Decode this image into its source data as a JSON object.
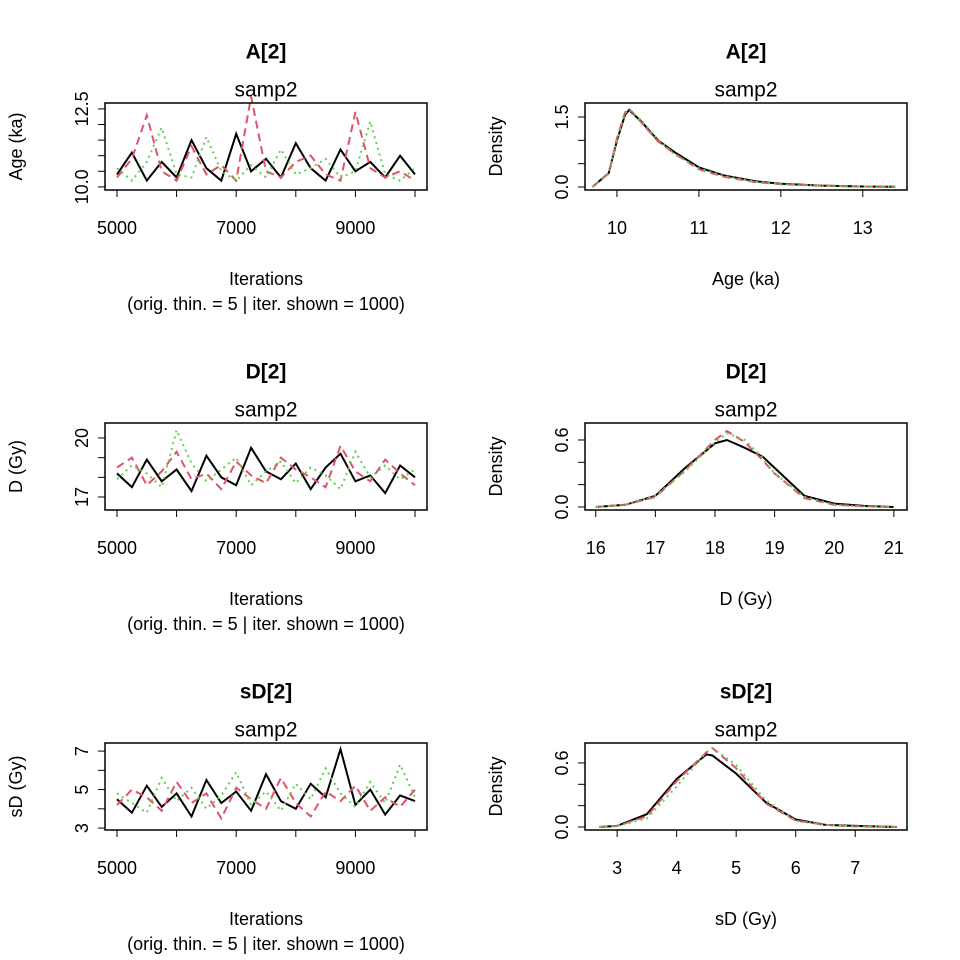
{
  "chart_data": [
    {
      "type": "line",
      "title": "A[2]",
      "subtitle": "samp2",
      "xlabel": "Iterations",
      "note": "(orig. thin. = 5 | iter. shown = 1000)",
      "ylabel": "Age (ka)",
      "x": [
        5000,
        5250,
        5500,
        5750,
        6000,
        6250,
        6500,
        6750,
        7000,
        7250,
        7500,
        7750,
        8000,
        8250,
        8500,
        8750,
        9000,
        9250,
        9500,
        9750,
        10000
      ],
      "series": [
        {
          "color": "#000000",
          "dash": "solid",
          "values": [
            10.4,
            11.1,
            10.2,
            10.8,
            10.3,
            11.5,
            10.6,
            10.2,
            11.7,
            10.5,
            10.9,
            10.3,
            11.4,
            10.6,
            10.2,
            11.2,
            10.5,
            10.8,
            10.3,
            11.0,
            10.4
          ]
        },
        {
          "color": "#DF536B",
          "dash": "dashed",
          "values": [
            10.3,
            10.9,
            12.3,
            10.5,
            10.2,
            11.3,
            10.4,
            10.7,
            10.2,
            12.9,
            10.5,
            10.3,
            10.8,
            11.0,
            10.4,
            10.2,
            12.4,
            10.6,
            10.3,
            10.5,
            10.2
          ]
        },
        {
          "color": "#61D04F",
          "dash": "dotted",
          "values": [
            10.6,
            10.2,
            10.8,
            11.9,
            10.4,
            10.3,
            11.6,
            10.5,
            10.2,
            10.7,
            10.3,
            11.2,
            10.4,
            10.6,
            10.9,
            10.3,
            10.5,
            12.1,
            10.4,
            10.2,
            10.6
          ]
        }
      ],
      "xlim": [
        4799,
        10201
      ],
      "xticks": [
        5000,
        7000,
        9000
      ],
      "xticks_minor": [
        6000,
        8000,
        10000
      ],
      "ylim": [
        9.9,
        12.69
      ],
      "yticks": [
        {
          "value": 10,
          "label": "10.0"
        },
        12.5
      ],
      "yticks_minor": [
        10.5,
        11,
        11.5,
        12
      ]
    },
    {
      "type": "line",
      "title": "A[2]",
      "subtitle": "samp2",
      "xlabel": "Age (ka)",
      "ylabel": "Density",
      "x": [
        9.7,
        9.9,
        10.0,
        10.1,
        10.15,
        10.3,
        10.5,
        10.7,
        11.0,
        11.3,
        11.7,
        12.0,
        12.5,
        13.0,
        13.4
      ],
      "series": [
        {
          "color": "#000000",
          "dash": "solid",
          "values": [
            0,
            0.3,
            1.0,
            1.55,
            1.65,
            1.4,
            1.0,
            0.75,
            0.42,
            0.25,
            0.12,
            0.07,
            0.03,
            0.01,
            0.005
          ]
        },
        {
          "color": "#DF536B",
          "dash": "dashed",
          "values": [
            0,
            0.3,
            1.05,
            1.6,
            1.68,
            1.38,
            0.98,
            0.72,
            0.38,
            0.22,
            0.1,
            0.06,
            0.03,
            0.01,
            0.005
          ]
        },
        {
          "color": "#61D04F",
          "dash": "dotted",
          "values": [
            0,
            0.28,
            1.0,
            1.58,
            1.66,
            1.42,
            1.02,
            0.7,
            0.4,
            0.24,
            0.11,
            0.06,
            0.02,
            0.01,
            0.005
          ]
        }
      ],
      "xlim": [
        9.61,
        13.54
      ],
      "xticks": [
        10,
        11,
        12,
        13
      ],
      "ylim": [
        -0.064,
        1.8
      ],
      "yticks": [
        {
          "value": 0,
          "label": "0.0"
        },
        1.5
      ],
      "yticks_minor": [
        0.5,
        1
      ]
    },
    {
      "type": "line",
      "title": "D[2]",
      "subtitle": "samp2",
      "xlabel": "Iterations",
      "note": "(orig. thin. = 5 | iter. shown = 1000)",
      "ylabel": "D (Gy)",
      "x": [
        5000,
        5250,
        5500,
        5750,
        6000,
        6250,
        6500,
        6750,
        7000,
        7250,
        7500,
        7750,
        8000,
        8250,
        8500,
        8750,
        9000,
        9250,
        9500,
        9750,
        10000
      ],
      "series": [
        {
          "color": "#000000",
          "dash": "solid",
          "values": [
            18.2,
            17.5,
            18.9,
            17.8,
            18.4,
            17.3,
            19.1,
            18.0,
            17.6,
            19.5,
            18.3,
            17.9,
            18.7,
            17.4,
            18.5,
            19.2,
            17.8,
            18.1,
            17.2,
            18.6,
            18.0
          ]
        },
        {
          "color": "#DF536B",
          "dash": "dashed",
          "values": [
            18.5,
            19.0,
            17.6,
            18.3,
            19.3,
            17.9,
            18.2,
            17.4,
            18.8,
            18.1,
            17.7,
            19.0,
            18.4,
            18.0,
            17.5,
            19.6,
            18.3,
            17.8,
            18.9,
            18.2,
            17.6
          ]
        },
        {
          "color": "#61D04F",
          "dash": "dotted",
          "values": [
            17.9,
            18.6,
            18.2,
            17.5,
            20.4,
            18.7,
            17.8,
            18.4,
            19.0,
            17.6,
            18.3,
            18.8,
            17.7,
            18.5,
            18.1,
            17.4,
            19.3,
            18.0,
            18.6,
            17.9,
            18.4
          ]
        }
      ],
      "xlim": [
        4799,
        10201
      ],
      "xticks": [
        5000,
        7000,
        9000
      ],
      "xticks_minor": [
        6000,
        8000,
        10000
      ],
      "ylim": [
        16.34,
        20.76
      ],
      "yticks": [
        17,
        20
      ],
      "yticks_minor": [
        18,
        19
      ]
    },
    {
      "type": "line",
      "title": "D[2]",
      "subtitle": "samp2",
      "xlabel": "D (Gy)",
      "ylabel": "Density",
      "x": [
        16,
        16.5,
        17,
        17.5,
        18,
        18.2,
        18.5,
        18.8,
        19,
        19.5,
        20,
        20.5,
        21
      ],
      "series": [
        {
          "color": "#000000",
          "dash": "solid",
          "values": [
            0,
            0.02,
            0.1,
            0.35,
            0.57,
            0.6,
            0.53,
            0.45,
            0.35,
            0.1,
            0.03,
            0.01,
            0
          ]
        },
        {
          "color": "#DF536B",
          "dash": "dashed",
          "values": [
            0,
            0.02,
            0.09,
            0.33,
            0.6,
            0.68,
            0.58,
            0.42,
            0.3,
            0.08,
            0.02,
            0.005,
            0
          ]
        },
        {
          "color": "#61D04F",
          "dash": "dotted",
          "values": [
            0,
            0.02,
            0.1,
            0.32,
            0.58,
            0.66,
            0.6,
            0.44,
            0.3,
            0.09,
            0.02,
            0.005,
            0
          ]
        }
      ],
      "xlim": [
        15.82,
        21.22
      ],
      "xticks": [
        16,
        17,
        18,
        19,
        20,
        21
      ],
      "ylim": [
        -0.027,
        0.752
      ],
      "yticks": [
        {
          "value": 0,
          "label": "0.0"
        },
        0.6
      ],
      "yticks_minor": [
        0.2,
        0.4
      ]
    },
    {
      "type": "line",
      "title": "sD[2]",
      "subtitle": "samp2",
      "xlabel": "Iterations",
      "note": "(orig. thin. = 5 | iter. shown = 1000)",
      "ylabel": "sD (Gy)",
      "x": [
        5000,
        5250,
        5500,
        5750,
        6000,
        6250,
        6500,
        6750,
        7000,
        7250,
        7500,
        7750,
        8000,
        8250,
        8500,
        8750,
        9000,
        9250,
        9500,
        9750,
        10000
      ],
      "series": [
        {
          "color": "#000000",
          "dash": "solid",
          "values": [
            4.5,
            3.8,
            5.2,
            4.1,
            4.8,
            3.6,
            5.5,
            4.3,
            4.9,
            3.9,
            5.8,
            4.4,
            4.0,
            5.3,
            4.6,
            7.1,
            4.2,
            5.0,
            3.7,
            4.7,
            4.4
          ]
        },
        {
          "color": "#DF536B",
          "dash": "dashed",
          "values": [
            4.2,
            5.0,
            4.6,
            3.9,
            5.4,
            4.3,
            4.8,
            3.5,
            5.1,
            4.5,
            4.0,
            5.6,
            4.3,
            3.6,
            4.9,
            4.4,
            5.2,
            3.9,
            4.6,
            4.1,
            5.0
          ]
        },
        {
          "color": "#61D04F",
          "dash": "dotted",
          "values": [
            4.8,
            4.3,
            3.8,
            5.6,
            4.4,
            5.1,
            4.0,
            4.7,
            5.9,
            4.2,
            4.9,
            3.9,
            5.3,
            4.5,
            6.1,
            4.8,
            4.1,
            5.4,
            4.3,
            6.3,
            4.6
          ]
        }
      ],
      "xlim": [
        4799,
        10201
      ],
      "xticks": [
        5000,
        7000,
        9000
      ],
      "xticks_minor": [
        6000,
        8000,
        10000
      ],
      "ylim": [
        2.9,
        7.42
      ],
      "yticks": [
        3,
        5,
        7
      ],
      "yticks_minor": [
        4,
        6
      ]
    },
    {
      "type": "line",
      "title": "sD[2]",
      "subtitle": "samp2",
      "xlabel": "sD (Gy)",
      "ylabel": "Density",
      "x": [
        2.7,
        3,
        3.5,
        4,
        4.5,
        4.6,
        5,
        5.5,
        6,
        6.5,
        7,
        7.7
      ],
      "series": [
        {
          "color": "#000000",
          "dash": "solid",
          "values": [
            0,
            0.01,
            0.12,
            0.45,
            0.68,
            0.67,
            0.5,
            0.23,
            0.07,
            0.02,
            0.01,
            0
          ]
        },
        {
          "color": "#DF536B",
          "dash": "dashed",
          "values": [
            0,
            0.01,
            0.1,
            0.43,
            0.7,
            0.74,
            0.55,
            0.22,
            0.06,
            0.02,
            0.005,
            0
          ]
        },
        {
          "color": "#61D04F",
          "dash": "dotted",
          "values": [
            0,
            0.01,
            0.08,
            0.38,
            0.7,
            0.74,
            0.58,
            0.25,
            0.06,
            0.02,
            0.005,
            0
          ]
        }
      ],
      "xlim": [
        2.46,
        7.87
      ],
      "xticks": [
        3,
        4,
        5,
        6,
        7
      ],
      "ylim": [
        -0.028,
        0.787
      ],
      "yticks": [
        {
          "value": 0,
          "label": "0.0"
        },
        0.6
      ],
      "yticks_minor": [
        0.2,
        0.4
      ]
    }
  ]
}
